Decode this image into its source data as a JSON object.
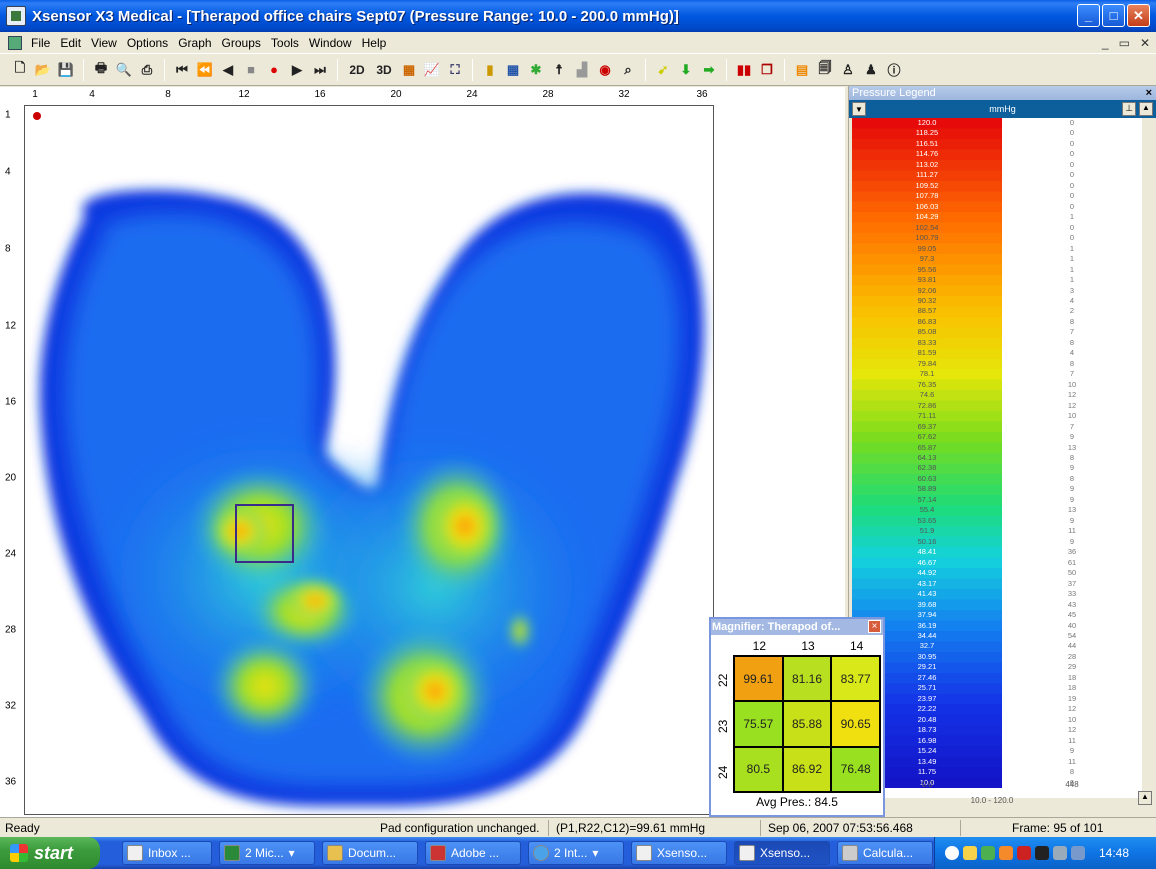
{
  "window": {
    "title": "Xsensor X3 Medical - [Therapod office chairs Sept07  (Pressure Range: 10.0 - 200.0 mmHg)]",
    "buttons": [
      "_",
      "□",
      "✕"
    ]
  },
  "menu": {
    "items": [
      "File",
      "Edit",
      "View",
      "Options",
      "Graph",
      "Groups",
      "Tools",
      "Window",
      "Help"
    ],
    "mdi_controls": [
      "_",
      "▭",
      "✕"
    ]
  },
  "toolbar": {
    "items": [
      "new-icon",
      "open-icon",
      "save-icon",
      "print-icon",
      "print-preview-icon",
      "print-setup-icon",
      "first-frame-icon",
      "prev-frame-icon",
      "step-back-icon",
      "stop-icon",
      "record-icon",
      "play-icon",
      "last-frame-icon",
      "2D",
      "3D",
      "grid-icon",
      "graph-icon",
      "groups-icon",
      "sensor-icon",
      "layout-icon",
      "body-icon",
      "target-icon",
      "zoom-icon",
      "pointer-icon",
      "export-icon",
      "import-icon",
      "bars-icon",
      "stack-icon",
      "legend-icon",
      "copy-icon",
      "person-icon",
      "people-icon",
      "info-icon"
    ]
  },
  "plot": {
    "col_ticks": [
      "1",
      "4",
      "8",
      "12",
      "16",
      "20",
      "24",
      "28",
      "32",
      "36"
    ],
    "row_ticks": [
      "1",
      "4",
      "8",
      "12",
      "16",
      "20",
      "24",
      "28",
      "32",
      "36"
    ]
  },
  "legend": {
    "title": "Pressure Legend",
    "unit": "mmHg",
    "rows": [
      {
        "v": "120.0",
        "c": "0"
      },
      {
        "v": "118.25",
        "c": "0"
      },
      {
        "v": "116.51",
        "c": "0"
      },
      {
        "v": "114.76",
        "c": "0"
      },
      {
        "v": "113.02",
        "c": "0"
      },
      {
        "v": "111.27",
        "c": "0"
      },
      {
        "v": "109.52",
        "c": "0"
      },
      {
        "v": "107.78",
        "c": "0"
      },
      {
        "v": "106.03",
        "c": "0"
      },
      {
        "v": "104.29",
        "c": "1"
      },
      {
        "v": "102.54",
        "c": "0"
      },
      {
        "v": "100.79",
        "c": "0"
      },
      {
        "v": "99.05",
        "c": "1"
      },
      {
        "v": "97.3",
        "c": "1"
      },
      {
        "v": "95.56",
        "c": "1"
      },
      {
        "v": "93.81",
        "c": "1"
      },
      {
        "v": "92.06",
        "c": "3"
      },
      {
        "v": "90.32",
        "c": "4"
      },
      {
        "v": "88.57",
        "c": "2"
      },
      {
        "v": "86.83",
        "c": "8"
      },
      {
        "v": "85.08",
        "c": "7"
      },
      {
        "v": "83.33",
        "c": "8"
      },
      {
        "v": "81.59",
        "c": "4"
      },
      {
        "v": "79.84",
        "c": "8"
      },
      {
        "v": "78.1",
        "c": "7"
      },
      {
        "v": "76.35",
        "c": "10"
      },
      {
        "v": "74.6",
        "c": "12"
      },
      {
        "v": "72.86",
        "c": "12"
      },
      {
        "v": "71.11",
        "c": "10"
      },
      {
        "v": "69.37",
        "c": "7"
      },
      {
        "v": "67.62",
        "c": "9"
      },
      {
        "v": "65.87",
        "c": "13"
      },
      {
        "v": "64.13",
        "c": "8"
      },
      {
        "v": "62.38",
        "c": "9"
      },
      {
        "v": "60.63",
        "c": "8"
      },
      {
        "v": "58.89",
        "c": "9"
      },
      {
        "v": "57.14",
        "c": "9"
      },
      {
        "v": "55.4",
        "c": "13"
      },
      {
        "v": "53.65",
        "c": "9"
      },
      {
        "v": "51.9",
        "c": "11"
      },
      {
        "v": "50.16",
        "c": "9"
      },
      {
        "v": "48.41",
        "c": "36"
      },
      {
        "v": "46.67",
        "c": "61"
      },
      {
        "v": "44.92",
        "c": "50"
      },
      {
        "v": "43.17",
        "c": "37"
      },
      {
        "v": "41.43",
        "c": "33"
      },
      {
        "v": "39.68",
        "c": "43"
      },
      {
        "v": "37.94",
        "c": "45"
      },
      {
        "v": "36.19",
        "c": "40"
      },
      {
        "v": "34.44",
        "c": "54"
      },
      {
        "v": "32.7",
        "c": "44"
      },
      {
        "v": "30.95",
        "c": "28"
      },
      {
        "v": "29.21",
        "c": "29"
      },
      {
        "v": "27.46",
        "c": "18"
      },
      {
        "v": "25.71",
        "c": "18"
      },
      {
        "v": "23.97",
        "c": "19"
      },
      {
        "v": "22.22",
        "c": "12"
      },
      {
        "v": "20.48",
        "c": "10"
      },
      {
        "v": "18.73",
        "c": "12"
      },
      {
        "v": "16.98",
        "c": "11"
      },
      {
        "v": "15.24",
        "c": "9"
      },
      {
        "v": "13.49",
        "c": "11"
      },
      {
        "v": "11.75",
        "c": "8"
      },
      {
        "v": "10.0",
        "c": "6"
      }
    ],
    "footer_value": "0.0",
    "footer_count": "448",
    "range": "10.0 - 120.0"
  },
  "magnifier": {
    "title": "Magnifier: Therapod of...",
    "cols": [
      "12",
      "13",
      "14"
    ],
    "rows": [
      "22",
      "23",
      "24"
    ],
    "cells": [
      [
        "99.61",
        "81.16",
        "83.77"
      ],
      [
        "75.57",
        "85.88",
        "90.65"
      ],
      [
        "80.5",
        "86.92",
        "76.48"
      ]
    ],
    "cell_colors": [
      [
        "#f0a010",
        "#b8e020",
        "#d8e818"
      ],
      [
        "#98e020",
        "#c8e018",
        "#f0e010"
      ],
      [
        "#a8e020",
        "#c8e018",
        "#98e020"
      ]
    ],
    "avg_label": "Avg Pres.: 84.5"
  },
  "status": {
    "ready": "Ready",
    "pad": "Pad configuration unchanged.",
    "cell": "(P1,R22,C12)=99.61 mmHg",
    "datetime": "Sep 06, 2007  07:53:56.468",
    "frame": "Frame: 95 of 101"
  },
  "taskbar": {
    "start": "start",
    "tasks": [
      "Inbox ...",
      "2 Mic...",
      "Docum...",
      "Adobe ...",
      "2 Int...",
      "Xsenso...",
      "Xsenso...",
      "Calcula..."
    ],
    "clock": "14:48"
  }
}
